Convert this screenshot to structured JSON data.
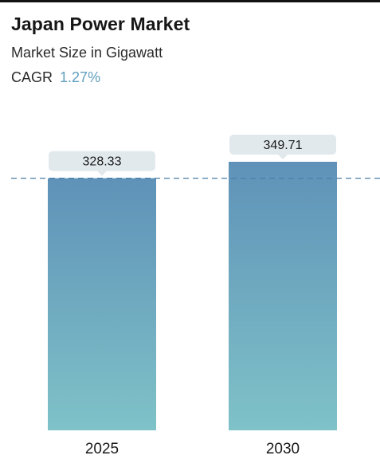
{
  "header": {
    "title": "Japan Power Market",
    "subtitle": "Market Size in Gigawatt",
    "cagr_label": "CAGR",
    "cagr_value": "1.27%"
  },
  "colors": {
    "bar_top": "#5f92b8",
    "bar_bottom": "#7fc2c8",
    "label_bg": "#e1e9ec",
    "reference_line": "#4a7fa8"
  },
  "chart_data": {
    "type": "bar",
    "title": "Japan Power Market",
    "categories": [
      "2025",
      "2030"
    ],
    "values": [
      328.33,
      349.71
    ],
    "value_labels": [
      "328.33",
      "349.71"
    ],
    "ylabel": "",
    "xlabel": "",
    "ylim": [
      0,
      349.71
    ],
    "reference_line_value": 328.33,
    "grid": false,
    "legend": "none"
  }
}
